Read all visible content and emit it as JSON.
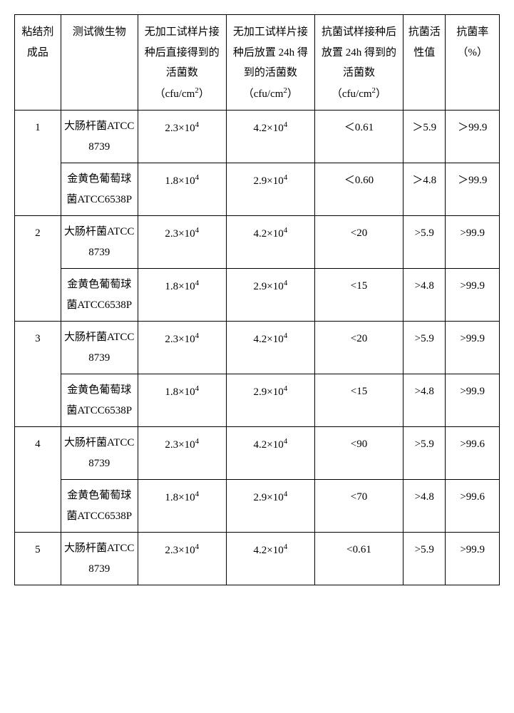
{
  "table": {
    "headers": [
      "粘结剂成品",
      "测试微生物",
      "无加工试样片接种后直接得到的活菌数（cfu/cm<sup>2</sup>）",
      "无加工试样片接种后放置 24h 得到的活菌数（cfu/cm<sup>2</sup>）",
      "抗菌试样接种后放置 24h 得到的活菌数（cfu/cm<sup>2</sup>）",
      "抗菌活性值",
      "抗菌率（%）"
    ],
    "groups": [
      {
        "id": "1",
        "rows": [
          {
            "org": "大肠杆菌ATCC 8739",
            "c3": "2.3×10<sup>4</sup>",
            "c4": "4.2×10<sup>4</sup>",
            "c5": "＜0.61",
            "c6": "＞5.9",
            "c7": "＞99.9"
          },
          {
            "org": "金黄色葡萄球菌ATCC6538P",
            "c3": "1.8×10<sup>4</sup>",
            "c4": "2.9×10<sup>4</sup>",
            "c5": "＜0.60",
            "c6": "＞4.8",
            "c7": "＞99.9"
          }
        ]
      },
      {
        "id": "2",
        "rows": [
          {
            "org": "大肠杆菌ATCC 8739",
            "c3": "2.3×10<sup>4</sup>",
            "c4": "4.2×10<sup>4</sup>",
            "c5": "<20",
            "c6": ">5.9",
            "c7": ">99.9"
          },
          {
            "org": "金黄色葡萄球菌ATCC6538P",
            "c3": "1.8×10<sup>4</sup>",
            "c4": "2.9×10<sup>4</sup>",
            "c5": "<15",
            "c6": ">4.8",
            "c7": ">99.9"
          }
        ]
      },
      {
        "id": "3",
        "rows": [
          {
            "org": "大肠杆菌ATCC 8739",
            "c3": "2.3×10<sup>4</sup>",
            "c4": "4.2×10<sup>4</sup>",
            "c5": "<20",
            "c6": ">5.9",
            "c7": ">99.9"
          },
          {
            "org": "金黄色葡萄球菌ATCC6538P",
            "c3": "1.8×10<sup>4</sup>",
            "c4": "2.9×10<sup>4</sup>",
            "c5": "<15",
            "c6": ">4.8",
            "c7": ">99.9"
          }
        ]
      },
      {
        "id": "4",
        "rows": [
          {
            "org": "大肠杆菌ATCC 8739",
            "c3": "2.3×10<sup>4</sup>",
            "c4": "4.2×10<sup>4</sup>",
            "c5": "<90",
            "c6": ">5.9",
            "c7": ">99.6"
          },
          {
            "org": "金黄色葡萄球菌ATCC6538P",
            "c3": "1.8×10<sup>4</sup>",
            "c4": "2.9×10<sup>4</sup>",
            "c5": "<70",
            "c6": ">4.8",
            "c7": ">99.6"
          }
        ]
      },
      {
        "id": "5",
        "rows": [
          {
            "org": "大肠杆菌ATCC 8739",
            "c3": "2.3×10<sup>4</sup>",
            "c4": "4.2×10<sup>4</sup>",
            "c5": "<0.61",
            "c6": ">5.9",
            "c7": ">99.9"
          }
        ]
      }
    ],
    "colors": {
      "border": "#000000",
      "background": "#ffffff",
      "text": "#000000"
    },
    "font_size": 15,
    "cell_line_height": 1.9
  }
}
